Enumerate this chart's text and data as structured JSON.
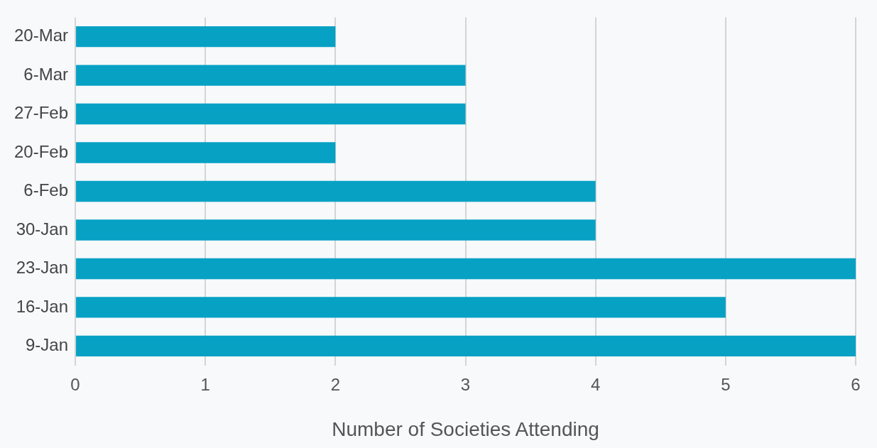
{
  "chart_data": {
    "type": "bar",
    "orientation": "horizontal",
    "xlabel": "Number of Societies Attending",
    "categories": [
      "20-Mar",
      "6-Mar",
      "27-Feb",
      "20-Feb",
      "6-Feb",
      "30-Jan",
      "23-Jan",
      "16-Jan",
      "9-Jan"
    ],
    "values": [
      2,
      3,
      3,
      2,
      4,
      4,
      6,
      5,
      6
    ],
    "color": "#07a1c4",
    "xlim": [
      0,
      6
    ],
    "xticks": [
      0,
      1,
      2,
      3,
      4,
      5,
      6
    ],
    "grid": "x",
    "legend": false
  }
}
